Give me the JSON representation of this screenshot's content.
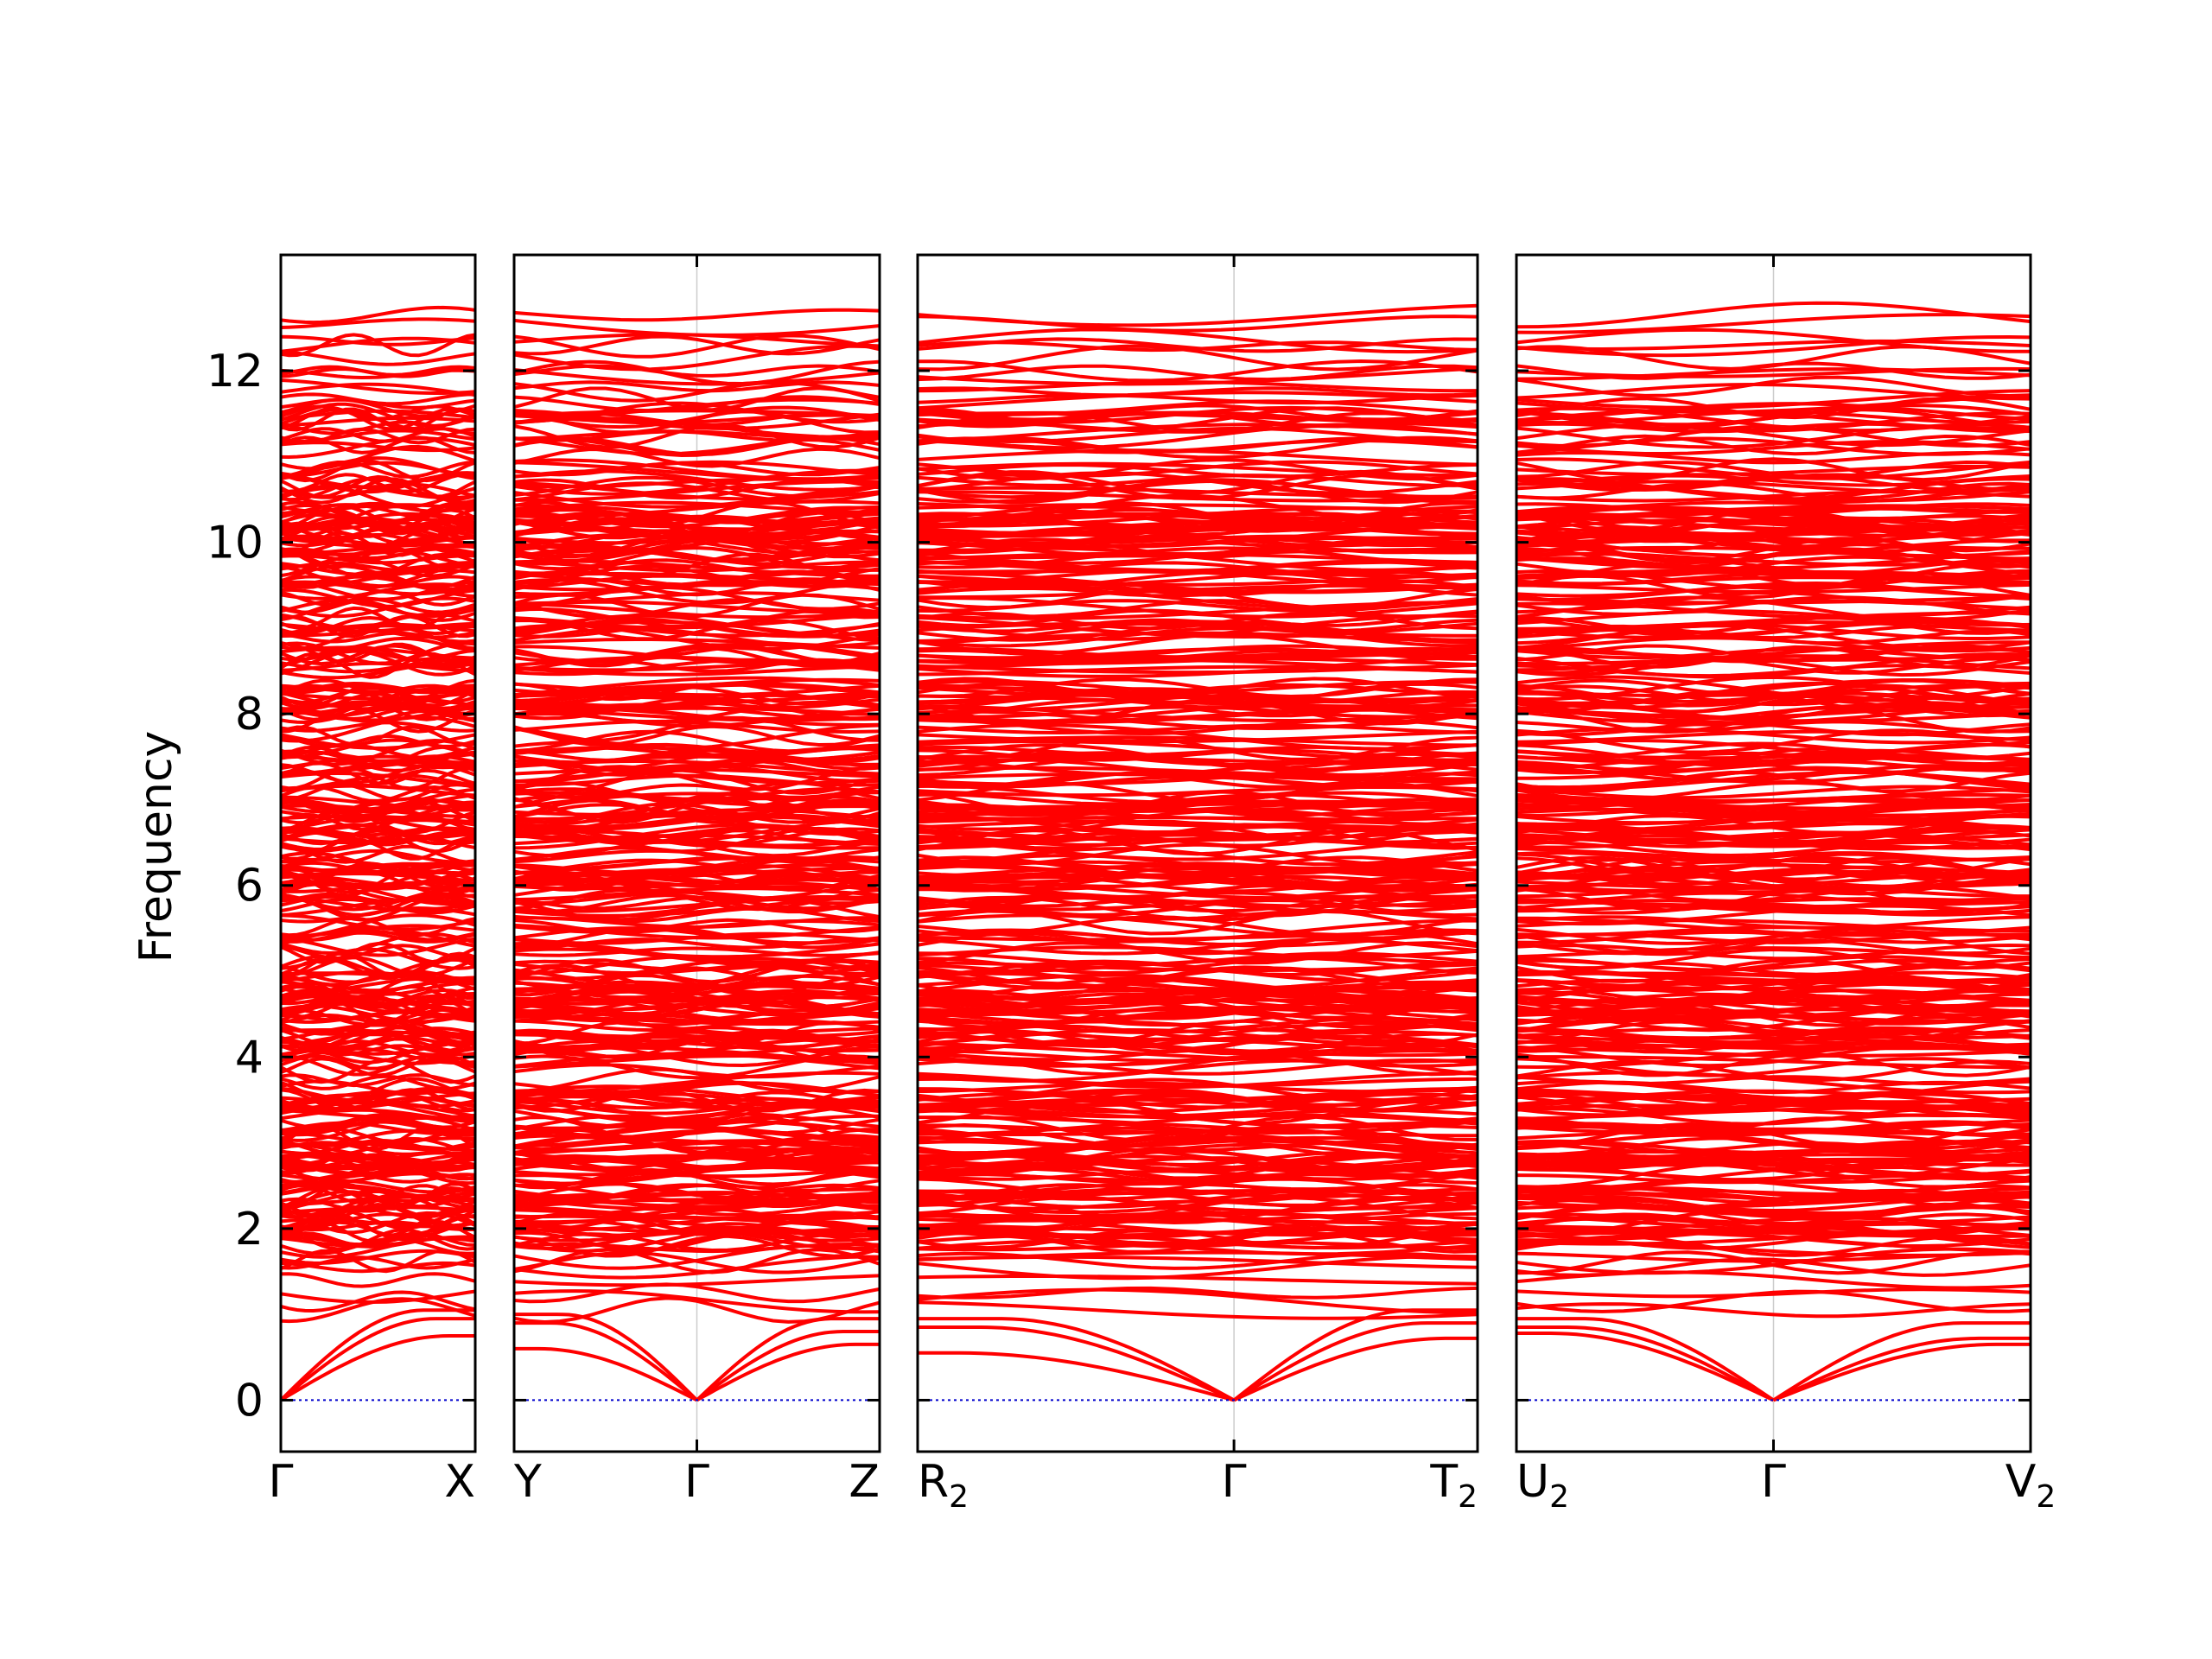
{
  "chart_data": {
    "type": "line",
    "title": "",
    "ylabel": "Frequency",
    "ylim": [
      -0.6,
      13.35
    ],
    "yticks": [
      "0",
      "2",
      "4",
      "6",
      "8",
      "10",
      "12"
    ],
    "grid": "vertical lines at Γ",
    "colors": {
      "bands": "#ff0000",
      "zero_line": "#0000cc",
      "axes": "#000000"
    },
    "panels": [
      {
        "name": "panel-1",
        "tick_labels": [
          {
            "label": "Γ",
            "sub": ""
          },
          {
            "label": "X",
            "sub": ""
          }
        ],
        "gamma_position": 0,
        "acoustic_top": [
          0.75,
          0.95,
          1.05
        ]
      },
      {
        "name": "panel-2",
        "tick_labels": [
          {
            "label": "Y",
            "sub": ""
          },
          {
            "label": "Γ",
            "sub": ""
          },
          {
            "label": "Z",
            "sub": ""
          }
        ],
        "gamma_position": 0.5,
        "acoustic_left": [
          0.6,
          0.9,
          1.0
        ],
        "acoustic_right": [
          0.65,
          0.8,
          0.95
        ]
      },
      {
        "name": "panel-3",
        "tick_labels": [
          {
            "label": "R",
            "sub": "2"
          },
          {
            "label": "Γ",
            "sub": ""
          },
          {
            "label": "T",
            "sub": "2"
          }
        ],
        "gamma_position": 0.565,
        "acoustic_left": [
          0.55,
          0.85,
          0.95
        ],
        "acoustic_right": [
          0.72,
          0.9,
          1.05
        ]
      },
      {
        "name": "panel-4",
        "tick_labels": [
          {
            "label": "U",
            "sub": "2"
          },
          {
            "label": "Γ",
            "sub": ""
          },
          {
            "label": "V",
            "sub": "2"
          }
        ],
        "gamma_position": 0.5,
        "acoustic_left": [
          0.78,
          0.85,
          0.95
        ],
        "acoustic_right": [
          0.65,
          0.72,
          0.9
        ]
      }
    ]
  }
}
